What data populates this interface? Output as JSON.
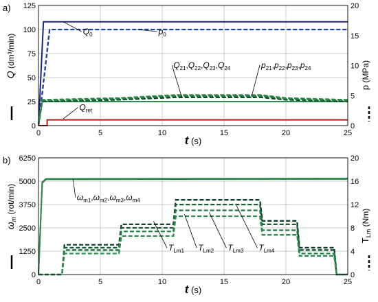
{
  "chart_data": [
    {
      "type": "line",
      "panel_label": "a)",
      "x": {
        "label_var": "t",
        "label_unit": "(s)",
        "range": [
          0,
          25
        ],
        "ticks": [
          "0",
          "5",
          "10",
          "15",
          "20",
          "25"
        ]
      },
      "y_left": {
        "label_var": "Q",
        "label_unit": "(dm³/min)",
        "range": [
          0,
          125
        ],
        "ticks": [
          "0",
          "25",
          "50",
          "75",
          "100",
          "125"
        ]
      },
      "y_right": {
        "label_var": "p",
        "label_unit": "(MPa)",
        "range": [
          0,
          20
        ],
        "ticks": [
          "0",
          "5",
          "10",
          "15",
          "20"
        ]
      },
      "grid": true,
      "series": [
        {
          "name": "Q0",
          "axis": "left",
          "style": "solid",
          "color": "#1a237e",
          "points": [
            [
              0,
              0
            ],
            [
              0.4,
              108
            ],
            [
              25,
              108
            ]
          ]
        },
        {
          "name": "p0",
          "axis": "right",
          "style": "dashed",
          "color": "#1f3c9a",
          "points": [
            [
              0,
              0
            ],
            [
              0.9,
              16
            ],
            [
              25,
              16
            ]
          ]
        },
        {
          "name": "Qret",
          "axis": "left",
          "style": "solid",
          "color": "#b71c1c",
          "points": [
            [
              0,
              0
            ],
            [
              0.7,
              0
            ],
            [
              0.7,
              6
            ],
            [
              25,
              6
            ]
          ]
        },
        {
          "name": "Q21,Q22,Q23,Q24",
          "axis": "left",
          "style": "solid",
          "color": "#2e8b4b",
          "points": [
            [
              0,
              0
            ],
            [
              0.3,
              25
            ],
            [
              25,
              25
            ]
          ]
        },
        {
          "name": "p21",
          "axis": "right",
          "style": "dashed",
          "color": "#0d4a24",
          "points": [
            [
              0,
              0
            ],
            [
              0.3,
              4
            ],
            [
              6.5,
              4.3
            ],
            [
              11,
              4.7
            ],
            [
              18,
              4.7
            ],
            [
              20,
              4.3
            ],
            [
              25,
              4.0
            ]
          ]
        },
        {
          "name": "p22",
          "axis": "right",
          "style": "dashed",
          "color": "#145a32",
          "points": [
            [
              0,
              0
            ],
            [
              0.3,
              4.1
            ],
            [
              6.5,
              4.4
            ],
            [
              11,
              4.9
            ],
            [
              18,
              4.9
            ],
            [
              20,
              4.4
            ],
            [
              25,
              4.1
            ]
          ]
        },
        {
          "name": "p23",
          "axis": "right",
          "style": "dashed",
          "color": "#1e7b40",
          "points": [
            [
              0,
              0
            ],
            [
              0.3,
              4.2
            ],
            [
              6.5,
              4.5
            ],
            [
              11,
              5.0
            ],
            [
              18,
              5.0
            ],
            [
              20,
              4.5
            ],
            [
              25,
              4.2
            ]
          ]
        },
        {
          "name": "p24",
          "axis": "right",
          "style": "dashed",
          "color": "#2e8b4b",
          "points": [
            [
              0,
              0
            ],
            [
              0.3,
              4.3
            ],
            [
              6.5,
              4.6
            ],
            [
              11,
              5.1
            ],
            [
              18,
              5.1
            ],
            [
              20,
              4.6
            ],
            [
              25,
              4.3
            ]
          ]
        }
      ],
      "annotations": [
        {
          "id": "q0",
          "base": "Q",
          "sub": "0",
          "x": 3.6,
          "y": 95,
          "axis": "left",
          "anchor": [
            2.0,
            108
          ]
        },
        {
          "id": "p0",
          "base": "p",
          "sub": "0",
          "x": 9.7,
          "y": 95,
          "axis": "left",
          "anchor": [
            8.0,
            100
          ]
        },
        {
          "id": "qret",
          "base": "Q",
          "sub": "ret",
          "x": 3.3,
          "y": 16,
          "axis": "left",
          "anchor": [
            2.0,
            7
          ]
        },
        {
          "id": "q2x",
          "parts": [
            [
              "Q",
              "21"
            ],
            [
              "Q",
              "22"
            ],
            [
              "Q",
              "23"
            ],
            [
              "Q",
              "24"
            ]
          ],
          "x": 10.9,
          "y": 60,
          "axis": "left",
          "anchor": [
            11.6,
            29
          ]
        },
        {
          "id": "p2x",
          "parts": [
            [
              "p",
              "21"
            ],
            [
              "p",
              "22"
            ],
            [
              "p",
              "23"
            ],
            [
              "p",
              "24"
            ]
          ],
          "x": 18.0,
          "y": 60,
          "axis": "left",
          "anchor": [
            17.2,
            29
          ]
        }
      ]
    },
    {
      "type": "line",
      "panel_label": "b)",
      "x": {
        "label_var": "t",
        "label_unit": "(s)",
        "range": [
          0,
          25
        ],
        "ticks": [
          "0",
          "5",
          "10",
          "15",
          "20",
          "25"
        ]
      },
      "y_left": {
        "label_var": "ω",
        "label_sub": "m",
        "label_unit": "(rot/min)",
        "range": [
          0,
          6250
        ],
        "ticks": [
          "0",
          "1250",
          "2500",
          "3750",
          "5000",
          "6250"
        ]
      },
      "y_right": {
        "label_var": "T",
        "label_sub": "Lm",
        "label_unit": "(Nm)",
        "range": [
          0,
          20
        ],
        "ticks": [
          "0",
          "4",
          "8",
          "12",
          "16",
          "20"
        ]
      },
      "grid": true,
      "series": [
        {
          "name": "ωm1",
          "axis": "left",
          "style": "solid",
          "color": "#1e7b40",
          "points": [
            [
              0,
              0
            ],
            [
              0.3,
              4900
            ],
            [
              0.6,
              5100
            ],
            [
              25,
              5120
            ]
          ]
        },
        {
          "name": "ωm2",
          "axis": "left",
          "style": "solid",
          "color": "#2e8b4b",
          "points": [
            [
              0,
              0
            ],
            [
              0.3,
              4950
            ],
            [
              0.6,
              5130
            ],
            [
              25,
              5150
            ]
          ]
        },
        {
          "name": "TLm1",
          "axis": "right",
          "style": "dashed",
          "color": "#0d3b2e",
          "points": [
            [
              0,
              0
            ],
            [
              1.9,
              0
            ],
            [
              2.1,
              5.1
            ],
            [
              6.5,
              5.1
            ],
            [
              6.7,
              8.6
            ],
            [
              10.9,
              8.6
            ],
            [
              11.1,
              12.8
            ],
            [
              17.9,
              12.8
            ],
            [
              18.1,
              9.2
            ],
            [
              20.9,
              9.2
            ],
            [
              21.1,
              4.6
            ],
            [
              23.9,
              4.6
            ],
            [
              24.1,
              0
            ],
            [
              25,
              0
            ]
          ]
        },
        {
          "name": "TLm2",
          "axis": "right",
          "style": "dashed",
          "color": "#145a32",
          "points": [
            [
              0,
              0
            ],
            [
              1.9,
              0
            ],
            [
              2.1,
              4.6
            ],
            [
              6.5,
              4.6
            ],
            [
              6.7,
              8.0
            ],
            [
              10.9,
              8.0
            ],
            [
              11.1,
              12.0
            ],
            [
              17.9,
              12.0
            ],
            [
              18.1,
              8.6
            ],
            [
              20.9,
              8.6
            ],
            [
              21.1,
              4.2
            ],
            [
              23.9,
              4.2
            ],
            [
              24.1,
              0
            ],
            [
              25,
              0
            ]
          ]
        },
        {
          "name": "TLm3",
          "axis": "right",
          "style": "dashed",
          "color": "#1e7b40",
          "points": [
            [
              0,
              0
            ],
            [
              1.9,
              0
            ],
            [
              2.1,
              4.2
            ],
            [
              6.5,
              4.2
            ],
            [
              6.7,
              7.4
            ],
            [
              10.9,
              7.4
            ],
            [
              11.1,
              11.0
            ],
            [
              17.9,
              11.0
            ],
            [
              18.1,
              7.6
            ],
            [
              20.9,
              7.6
            ],
            [
              21.1,
              3.6
            ],
            [
              23.9,
              3.6
            ],
            [
              24.1,
              0
            ],
            [
              25,
              0
            ]
          ]
        },
        {
          "name": "TLm4",
          "axis": "right",
          "style": "dashed",
          "color": "#2e8b4b",
          "points": [
            [
              0,
              0
            ],
            [
              1.9,
              0
            ],
            [
              2.1,
              3.6
            ],
            [
              6.5,
              3.6
            ],
            [
              6.7,
              6.6
            ],
            [
              10.9,
              6.6
            ],
            [
              11.1,
              10.0
            ],
            [
              17.9,
              10.0
            ],
            [
              18.1,
              6.8
            ],
            [
              20.9,
              6.8
            ],
            [
              21.1,
              3.2
            ],
            [
              23.9,
              3.2
            ],
            [
              24.1,
              0
            ],
            [
              25,
              0
            ]
          ]
        }
      ],
      "annotations": [
        {
          "id": "wm",
          "parts": [
            [
              "ω",
              "m1"
            ],
            [
              "ω",
              "m2"
            ],
            [
              "ω",
              "m3"
            ],
            [
              "ω",
              "m4"
            ]
          ],
          "x": 3.1,
          "y": 3980,
          "axis": "left",
          "anchor": [
            2.8,
            5100
          ]
        },
        {
          "id": "tlm1",
          "base": "T",
          "sub": "Lm1",
          "x": 10.5,
          "y": 1280,
          "axis": "left",
          "anchor": [
            9.3,
            2850
          ]
        },
        {
          "id": "tlm2",
          "base": "T",
          "sub": "Lm2",
          "x": 12.9,
          "y": 1280,
          "axis": "left",
          "anchor": [
            11.8,
            3230
          ]
        },
        {
          "id": "tlm3",
          "base": "T",
          "sub": "Lm3",
          "x": 15.3,
          "y": 1280,
          "axis": "left",
          "anchor": [
            13.8,
            3330
          ]
        },
        {
          "id": "tlm4",
          "base": "T",
          "sub": "Lm4",
          "x": 17.8,
          "y": 1280,
          "axis": "left",
          "anchor": [
            16.0,
            3700
          ]
        }
      ]
    }
  ]
}
